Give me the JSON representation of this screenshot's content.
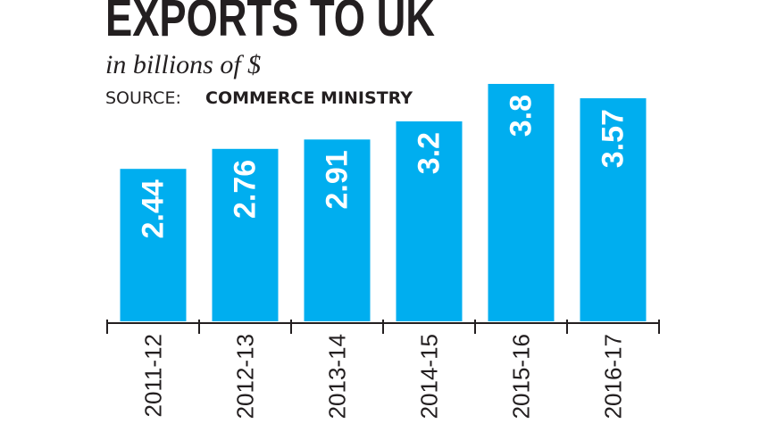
{
  "chart_data": {
    "type": "bar",
    "title": "EXPORTS TO UK",
    "subtitle": "in billions of $",
    "source_label": "SOURCE:",
    "source": "COMMERCE MINISTRY",
    "categories": [
      "2011-12",
      "2012-13",
      "2013-14",
      "2014-15",
      "2015-16",
      "2016-17"
    ],
    "values": [
      2.44,
      2.76,
      2.91,
      3.2,
      3.8,
      3.57
    ],
    "color": "#00aeef"
  }
}
